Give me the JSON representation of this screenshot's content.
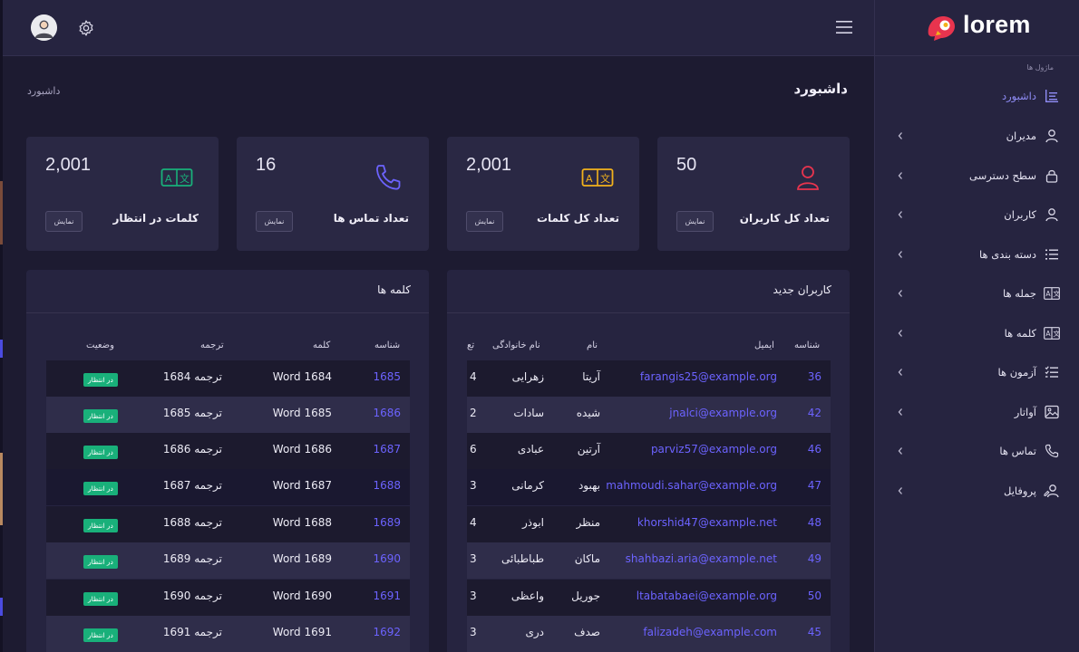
{
  "header": {},
  "sidebar": {
    "logo": "lorem",
    "section_label": "ماژول ها",
    "items": [
      {
        "label": "داشبورد",
        "icon": "dashboard-icon",
        "active": true,
        "expandable": false
      },
      {
        "label": "مدیران",
        "icon": "user-icon",
        "active": false,
        "expandable": true
      },
      {
        "label": "سطح دسترسی",
        "icon": "lock-icon",
        "active": false,
        "expandable": true
      },
      {
        "label": "کاربران",
        "icon": "user-icon",
        "active": false,
        "expandable": true
      },
      {
        "label": "دسته بندی ها",
        "icon": "list-icon",
        "active": false,
        "expandable": true
      },
      {
        "label": "جمله ها",
        "icon": "translate-icon",
        "active": false,
        "expandable": true
      },
      {
        "label": "کلمه ها",
        "icon": "translate-icon",
        "active": false,
        "expandable": true
      },
      {
        "label": "آزمون ها",
        "icon": "checklist-icon",
        "active": false,
        "expandable": true
      },
      {
        "label": "آواتار",
        "icon": "image-icon",
        "active": false,
        "expandable": true
      },
      {
        "label": "تماس ها",
        "icon": "phone-icon",
        "active": false,
        "expandable": true
      },
      {
        "label": "پروفایل",
        "icon": "user-edit-icon",
        "active": false,
        "expandable": true
      }
    ]
  },
  "main": {
    "page_title": "داشبورد",
    "breadcrumb": "داشبورد",
    "stats": [
      {
        "title": "تعداد کل کاربران",
        "value": "50",
        "button": "نمایش",
        "icon": "user-icon",
        "color": "#e8344e"
      },
      {
        "title": "تعداد کل کلمات",
        "value": "2,001",
        "button": "نمایش",
        "icon": "translate-icon",
        "color": "#f2b21c"
      },
      {
        "title": "تعداد تماس ها",
        "value": "16",
        "button": "نمایش",
        "icon": "phone-icon",
        "color": "#6c63ff"
      },
      {
        "title": "کلمات در انتظار",
        "value": "2,001",
        "button": "نمایش",
        "icon": "translate-icon",
        "color": "#19b07a"
      }
    ],
    "new_users": {
      "title": "کاربران جدید",
      "columns": [
        "شناسه",
        "ایمیل",
        "نام",
        "نام خانوادگی",
        "تع"
      ],
      "rows": [
        {
          "id": "36",
          "email": "farangis25@example.org",
          "first": "آریتا",
          "last": "زهرایی",
          "count": "4"
        },
        {
          "id": "42",
          "email": "jnalci@example.org",
          "first": "شیده",
          "last": "سادات",
          "count": "2"
        },
        {
          "id": "46",
          "email": "parviz57@example.org",
          "first": "آرتین",
          "last": "عبادی",
          "count": "6"
        },
        {
          "id": "47",
          "email": "mahmoudi.sahar@example.org",
          "first": "بهبود",
          "last": "کرمانی",
          "count": "3"
        },
        {
          "id": "48",
          "email": "khorshid47@example.net",
          "first": "منظر",
          "last": "ابوذر",
          "count": "4"
        },
        {
          "id": "49",
          "email": "shahbazi.aria@example.net",
          "first": "ماکان",
          "last": "طباطبائی",
          "count": "3"
        },
        {
          "id": "50",
          "email": "ltabatabaei@example.org",
          "first": "جوریل",
          "last": "واعظی",
          "count": "3"
        },
        {
          "id": "45",
          "email": "falizadeh@example.com",
          "first": "صدف",
          "last": "دری",
          "count": "3"
        }
      ]
    },
    "words": {
      "title": "کلمه ها",
      "columns": [
        "شناسه",
        "کلمه",
        "ترجمه",
        "وضعیت"
      ],
      "rows": [
        {
          "id": "1685",
          "word": "Word 1684",
          "translation": "ترجمه 1684",
          "status": "در انتظار"
        },
        {
          "id": "1686",
          "word": "Word 1685",
          "translation": "ترجمه 1685",
          "status": "در انتظار"
        },
        {
          "id": "1687",
          "word": "Word 1686",
          "translation": "ترجمه 1686",
          "status": "در انتظار"
        },
        {
          "id": "1688",
          "word": "Word 1687",
          "translation": "ترجمه 1687",
          "status": "در انتظار"
        },
        {
          "id": "1689",
          "word": "Word 1688",
          "translation": "ترجمه 1688",
          "status": "در انتظار"
        },
        {
          "id": "1690",
          "word": "Word 1689",
          "translation": "ترجمه 1689",
          "status": "در انتظار"
        },
        {
          "id": "1691",
          "word": "Word 1690",
          "translation": "ترجمه 1690",
          "status": "در انتظار"
        },
        {
          "id": "1692",
          "word": "Word 1691",
          "translation": "ترجمه 1691",
          "status": "در انتظار"
        }
      ]
    }
  },
  "colors": {
    "accent": "#6c63ff",
    "success": "#19b07a",
    "danger": "#e8344e",
    "warning": "#f2b21c",
    "background": "#1d1b31",
    "surface": "#262440"
  }
}
